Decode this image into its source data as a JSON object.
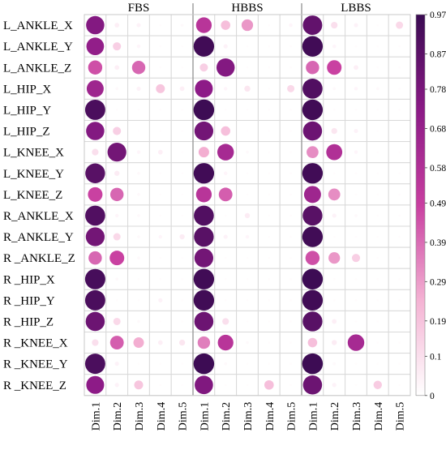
{
  "chart_data": {
    "type": "heatmap",
    "encoding": "bubble (size and color proportional to value)",
    "groups": [
      "FBS",
      "HBBS",
      "LBBS"
    ],
    "columns": [
      "Dim.1",
      "Dim.2",
      "Dim.3",
      "Dim.4",
      "Dim.5"
    ],
    "rows": [
      "L_ANKLE_X",
      "L_ANKLE_Y",
      "L_ANKLE_Z",
      "L_HIP_X",
      "L_HIP_Y",
      "L_HIP_Z",
      "L_KNEE_X",
      "L_KNEE_Y",
      "L_KNEE_Z",
      "R_ANKLE_X",
      "R_ANKLE_Y",
      "R _ANKLE_Z",
      "R _HIP_X",
      "R _HIP_Y",
      "R _HIP_Z",
      "R _KNEE_X",
      "R _KNEE_Y",
      "R _KNEE_Z"
    ],
    "values": {
      "FBS": [
        [
          0.75,
          0.05,
          0.04,
          0.01,
          0.02
        ],
        [
          0.7,
          0.15,
          0.03,
          0.01,
          0.01
        ],
        [
          0.45,
          0.05,
          0.4,
          0.01,
          0.01
        ],
        [
          0.65,
          0.02,
          0.04,
          0.18,
          0.05
        ],
        [
          0.92,
          0.01,
          0.01,
          0.01,
          0.01
        ],
        [
          0.75,
          0.15,
          0.01,
          0.01,
          0.01
        ],
        [
          0.1,
          0.8,
          0.03,
          0.05,
          0.01
        ],
        [
          0.88,
          0.06,
          0.02,
          0.01,
          0.01
        ],
        [
          0.48,
          0.4,
          0.02,
          0.01,
          0.01
        ],
        [
          0.9,
          0.03,
          0.02,
          0.01,
          0.01
        ],
        [
          0.8,
          0.12,
          0.02,
          0.03,
          0.06
        ],
        [
          0.4,
          0.48,
          0.02,
          0.01,
          0.01
        ],
        [
          0.93,
          0.02,
          0.01,
          0.01,
          0.01
        ],
        [
          0.92,
          0.01,
          0.01,
          0.04,
          0.01
        ],
        [
          0.82,
          0.12,
          0.02,
          0.01,
          0.01
        ],
        [
          0.1,
          0.42,
          0.25,
          0.05,
          0.08
        ],
        [
          0.92,
          0.04,
          0.01,
          0.01,
          0.01
        ],
        [
          0.72,
          0.04,
          0.18,
          0.01,
          0.01
        ]
      ],
      "HBBS": [
        [
          0.55,
          0.2,
          0.3,
          0.01,
          0.03
        ],
        [
          0.95,
          0.04,
          0.01,
          0.01,
          0.01
        ],
        [
          0.15,
          0.75,
          0.01,
          0.01,
          0.01
        ],
        [
          0.72,
          0.03,
          0.08,
          0.01,
          0.12
        ],
        [
          0.96,
          0.01,
          0.01,
          0.01,
          0.01
        ],
        [
          0.8,
          0.2,
          0.01,
          0.01,
          0.01
        ],
        [
          0.25,
          0.62,
          0.02,
          0.01,
          0.01
        ],
        [
          0.95,
          0.03,
          0.01,
          0.01,
          0.01
        ],
        [
          0.55,
          0.42,
          0.01,
          0.01,
          0.01
        ],
        [
          0.9,
          0.01,
          0.06,
          0.01,
          0.01
        ],
        [
          0.88,
          0.04,
          0.03,
          0.01,
          0.01
        ],
        [
          0.8,
          0.01,
          0.01,
          0.01,
          0.01
        ],
        [
          0.95,
          0.01,
          0.01,
          0.01,
          0.01
        ],
        [
          0.95,
          0.01,
          0.01,
          0.01,
          0.01
        ],
        [
          0.82,
          0.1,
          0.01,
          0.01,
          0.01
        ],
        [
          0.35,
          0.55,
          0.02,
          0.01,
          0.01
        ],
        [
          0.96,
          0.02,
          0.01,
          0.01,
          0.01
        ],
        [
          0.76,
          0.01,
          0.01,
          0.2,
          0.01
        ]
      ],
      "LBBS": [
        [
          0.85,
          0.1,
          0.04,
          0.01,
          0.12
        ],
        [
          0.95,
          0.03,
          0.01,
          0.01,
          0.01
        ],
        [
          0.4,
          0.48,
          0.05,
          0.01,
          0.01
        ],
        [
          0.9,
          0.02,
          0.03,
          0.02,
          0.01
        ],
        [
          0.95,
          0.01,
          0.01,
          0.01,
          0.01
        ],
        [
          0.82,
          0.08,
          0.04,
          0.01,
          0.01
        ],
        [
          0.32,
          0.58,
          0.03,
          0.01,
          0.01
        ],
        [
          0.95,
          0.01,
          0.01,
          0.01,
          0.01
        ],
        [
          0.65,
          0.32,
          0.01,
          0.01,
          0.01
        ],
        [
          0.88,
          0.04,
          0.02,
          0.01,
          0.01
        ],
        [
          0.95,
          0.01,
          0.01,
          0.01,
          0.01
        ],
        [
          0.45,
          0.3,
          0.15,
          0.01,
          0.01
        ],
        [
          0.96,
          0.01,
          0.01,
          0.01,
          0.01
        ],
        [
          0.95,
          0.01,
          0.01,
          0.01,
          0.01
        ],
        [
          0.88,
          0.05,
          0.01,
          0.01,
          0.01
        ],
        [
          0.2,
          0.06,
          0.62,
          0.01,
          0.01
        ],
        [
          0.96,
          0.02,
          0.01,
          0.01,
          0.01
        ],
        [
          0.82,
          0.04,
          0.01,
          0.16,
          0.01
        ]
      ]
    },
    "colorbar": {
      "ticks": [
        "0",
        "0.1",
        "0.19",
        "0.29",
        "0.39",
        "0.49",
        "0.58",
        "0.68",
        "0.78",
        "0.87",
        "0.97"
      ],
      "range": [
        0,
        0.97
      ],
      "colors": [
        "#ffffff",
        "#f4b2d3",
        "#c83fa0",
        "#8b1a86",
        "#3a0b52"
      ]
    }
  }
}
